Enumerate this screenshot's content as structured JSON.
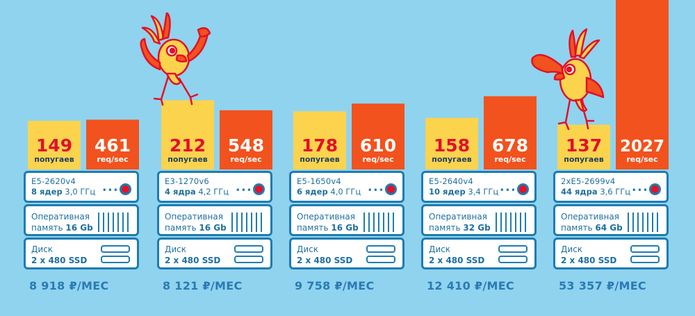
{
  "chart_data": {
    "type": "bar",
    "categories": [
      "E5-2620v4",
      "E3-1270v6",
      "E5-1650v4",
      "E5-2640v4",
      "2xE5-2699v4"
    ],
    "series": [
      {
        "name": "попугаев",
        "values": [
          149,
          212,
          178,
          158,
          137
        ],
        "color": "#fcd34d"
      },
      {
        "name": "req/sec",
        "values": [
          461,
          548,
          610,
          678,
          2027
        ],
        "color": "#f2521d"
      }
    ],
    "value_label_colors": {
      "попугаев": "#e2102a",
      "req/sec": "#ffffff"
    }
  },
  "servers": [
    {
      "cpu": "E5-2620v4",
      "cores": "8 ядер",
      "freq": "3,0 ГГц",
      "ram_label": "Оперативная",
      "ram_prefix": "память",
      "ram_size": "16 Gb",
      "disk_label": "Диск",
      "disk_size": "2 x 480 SSD",
      "price": "8 918 ₽/МЕС"
    },
    {
      "cpu": "E3-1270v6",
      "cores": "4 ядра",
      "freq": "4,2 ГГц",
      "ram_label": "Оперативная",
      "ram_prefix": "память",
      "ram_size": "16 Gb",
      "disk_label": "Диск",
      "disk_size": "2 x 480 SSD",
      "price": "8 121 ₽/МЕС"
    },
    {
      "cpu": "E5-1650v4",
      "cores": "6 ядер",
      "freq": "4,0 ГГц",
      "ram_label": "Оперативная",
      "ram_prefix": "память",
      "ram_size": "16 Gb",
      "disk_label": "Диск",
      "disk_size": "2 x 480 SSD",
      "price": "9 758 ₽/МЕС"
    },
    {
      "cpu": "E5-2640v4",
      "cores": "10 ядер",
      "freq": "3,4 ГГц",
      "ram_label": "Оперативная",
      "ram_prefix": "память",
      "ram_size": "32 Gb",
      "disk_label": "Диск",
      "disk_size": "2 x 480 SSD",
      "price": "12 410 ₽/МЕС"
    },
    {
      "cpu": "2xE5-2699v4",
      "cores": "44 ядра",
      "freq": "3,6 ГГц",
      "ram_label": "Оперативная",
      "ram_prefix": "память",
      "ram_size": "64 Gb",
      "disk_label": "Диск",
      "disk_size": "2 x 480 SSD",
      "price": "53 357 ₽/МЕС"
    }
  ],
  "colors": {
    "background": "#8fd3ef",
    "server_border": "#1e7cb0",
    "text_blue": "#1e6fa3",
    "led": "#e8102a",
    "parrot_body": "#fcd34d",
    "parrot_wing": "#f2521d"
  },
  "mascots": [
    "parrot-flexing-icon",
    "parrot-saluting-icon"
  ]
}
